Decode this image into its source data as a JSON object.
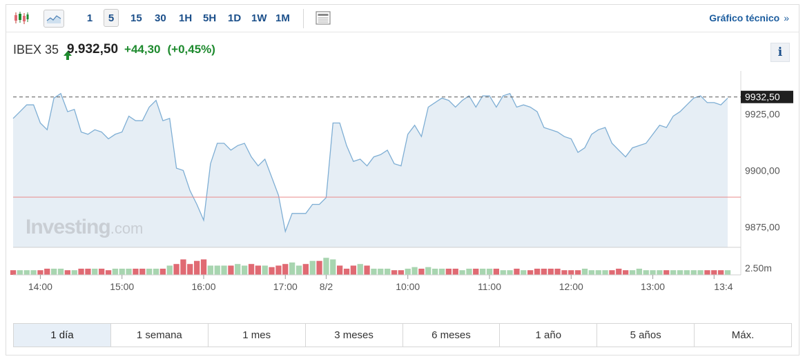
{
  "toolbar": {
    "intervals": [
      "1",
      "5",
      "15",
      "30",
      "1H",
      "5H",
      "1D",
      "1W",
      "1M"
    ],
    "active_interval": "5",
    "technical_chart_label": "Gráfico técnico",
    "technical_chart_chevron": "»"
  },
  "quote": {
    "name": "IBEX 35",
    "price": "9.932,50",
    "change": "+44,30",
    "change_pct": "(+0,45%)",
    "direction": "up",
    "up_color": "#1e8a2e"
  },
  "info_label": "i",
  "watermark": {
    "brand": "Investing",
    "suffix": ".com"
  },
  "ranges": [
    "1 día",
    "1 semana",
    "1 mes",
    "3 meses",
    "6 meses",
    "1 año",
    "5 años",
    "Máx."
  ],
  "active_range": "1 día",
  "chart_data": {
    "type": "area",
    "series": [
      {
        "values": [
          9923,
          9926,
          9929,
          9929,
          9921,
          9918,
          9932,
          9934,
          9926,
          9927,
          9917,
          9916,
          9918,
          9917,
          9914,
          9916,
          9917,
          9924,
          9922,
          9922,
          9928,
          9931,
          9922,
          9923,
          9901,
          9900,
          9891,
          9885,
          9878,
          9903,
          9912,
          9912,
          9909,
          9911,
          9912,
          9906,
          9902,
          9905,
          9897,
          9889,
          9873,
          9881,
          9881,
          9881,
          9885,
          9885,
          9888,
          9921,
          9921,
          9911,
          9904,
          9905,
          9902,
          9906,
          9907,
          9909,
          9903,
          9902,
          9916,
          9920,
          9915,
          9928,
          9930,
          9932,
          9931,
          9928,
          9931,
          9933,
          9928,
          9933,
          9933,
          9928,
          9933,
          9934,
          9928,
          9929,
          9928,
          9926,
          9919,
          9918,
          9917,
          9915,
          9914,
          9908,
          9910,
          9916,
          9918,
          9919,
          9912,
          9909,
          9906,
          9910,
          9911,
          9912,
          9916,
          9920,
          9919,
          9924,
          9926,
          9929,
          9932,
          9933,
          9930,
          9930,
          9929,
          9932
        ]
      }
    ],
    "volume": [
      3,
      3,
      3,
      3,
      3,
      4,
      4,
      4,
      3,
      3,
      4,
      4,
      4,
      4,
      3,
      4,
      4,
      4,
      4,
      4,
      4,
      4,
      4,
      6,
      7,
      10,
      7,
      9,
      10,
      6,
      6,
      6,
      6,
      7,
      6,
      7,
      6,
      6,
      5,
      6,
      7,
      8,
      6,
      7,
      9,
      9,
      11,
      10,
      6,
      4,
      6,
      7,
      6,
      4,
      4,
      4,
      3,
      3,
      4,
      5,
      4,
      5,
      4,
      4,
      4,
      4,
      3,
      4,
      4,
      4,
      4,
      4,
      3,
      3,
      4,
      3,
      3,
      4,
      4,
      4,
      4,
      3,
      3,
      3,
      4,
      3,
      3,
      3,
      3,
      4,
      3,
      3,
      4,
      3,
      3,
      3,
      3,
      3,
      3,
      3,
      3,
      3,
      3,
      3,
      3,
      3
    ],
    "volume_up": [
      false,
      true,
      true,
      true,
      false,
      false,
      true,
      true,
      false,
      true,
      false,
      false,
      true,
      false,
      false,
      true,
      true,
      true,
      false,
      false,
      true,
      true,
      false,
      true,
      false,
      false,
      false,
      false,
      false,
      true,
      true,
      true,
      false,
      true,
      true,
      false,
      false,
      true,
      false,
      false,
      false,
      true,
      true,
      false,
      true,
      false,
      true,
      true,
      false,
      false,
      false,
      true,
      false,
      true,
      true,
      true,
      false,
      false,
      true,
      true,
      false,
      true,
      true,
      true,
      false,
      false,
      true,
      true,
      false,
      true,
      true,
      false,
      true,
      true,
      false,
      true,
      false,
      false,
      false,
      false,
      false,
      false,
      false,
      false,
      true,
      true,
      true,
      true,
      false,
      false,
      false,
      true,
      true,
      true,
      true,
      true,
      false,
      true,
      true,
      true,
      true,
      true,
      false,
      false,
      false,
      true
    ],
    "x_labels": [
      "14:00",
      "15:00",
      "16:00",
      "17:00",
      "8/2",
      "10:00",
      "11:00",
      "12:00",
      "13:00",
      "13:4"
    ],
    "x_label_index": [
      4,
      16,
      28,
      40,
      46,
      58,
      70,
      82,
      94,
      103
    ],
    "y_ticks": [
      9925,
      9900,
      9875
    ],
    "y_tick_labels": [
      "9925,00",
      "9900,00",
      "9875,00"
    ],
    "ylim": [
      9866,
      9944
    ],
    "last_value_label": "9932,50",
    "last_value": 9932.5,
    "previous_close": 9888.2,
    "volume_axis_label": "2.50m",
    "volume_axis_value": 2.5,
    "volume_max": 11,
    "colors": {
      "line": "#7eaed4",
      "fill": "#e6eef5",
      "prev_close": "#e98a8a",
      "vol_up": "#a8d5b0",
      "vol_down": "#e06a73",
      "last_badge": "#1f1f1f"
    }
  }
}
